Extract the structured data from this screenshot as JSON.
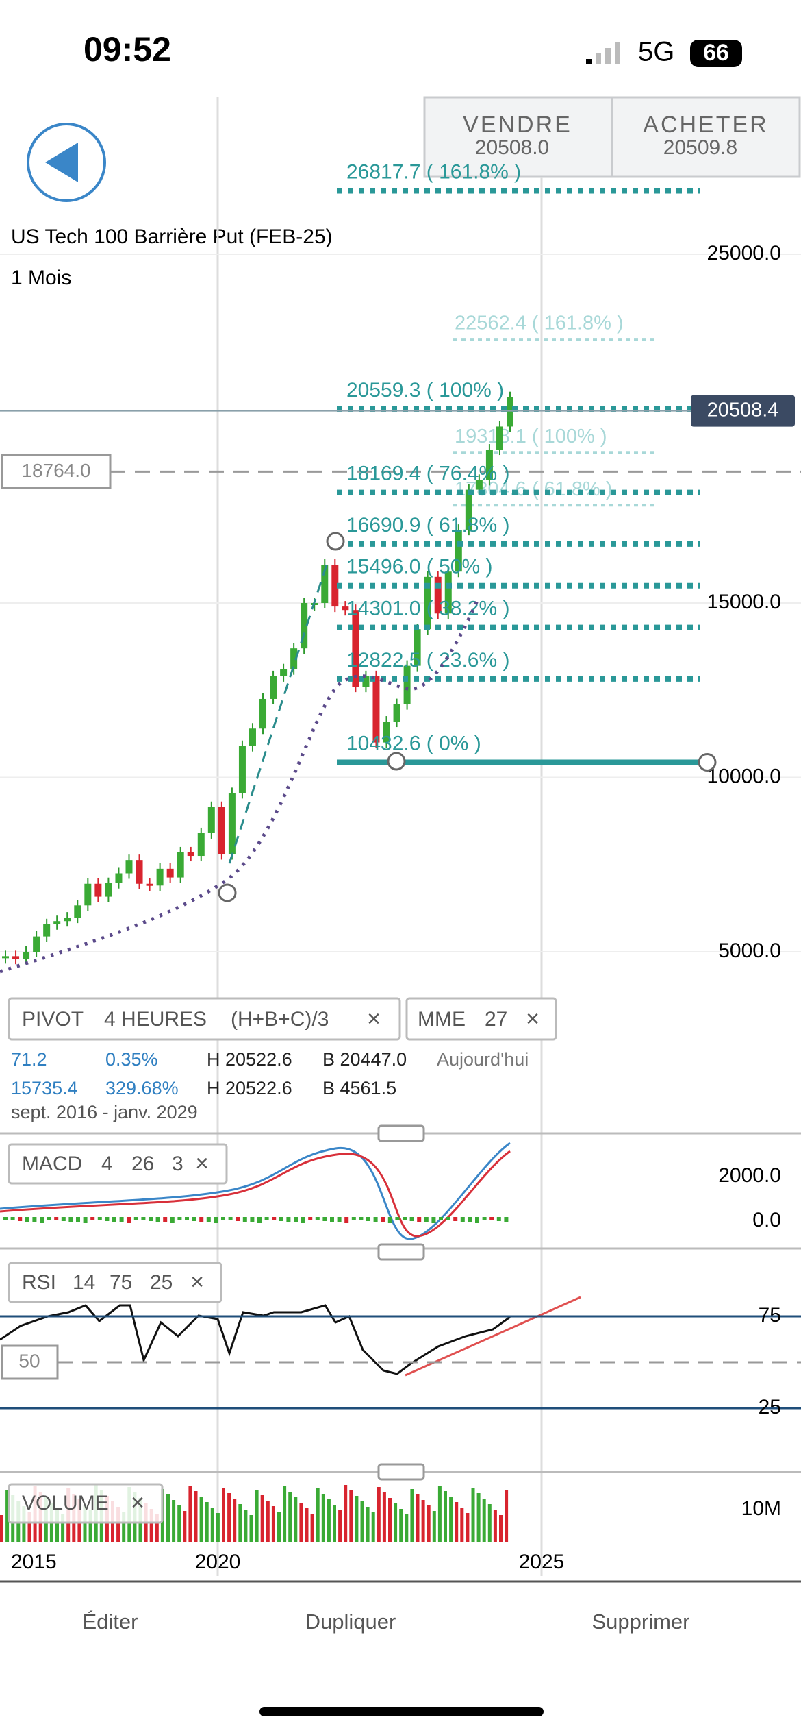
{
  "status_bar": {
    "time": "09:52",
    "network": "5G",
    "battery": "66"
  },
  "trade_buttons": {
    "sell_label": "VENDRE",
    "sell_price": "20508.0",
    "buy_label": "ACHETER",
    "buy_price": "20509.8"
  },
  "chart": {
    "title": "US Tech 100 Barrière Put (FEB-25)",
    "period": "1 Mois",
    "yticks": [
      {
        "value": 25000,
        "label": "25000.0"
      },
      {
        "value": 15000,
        "label": "15000.0"
      },
      {
        "value": 10000,
        "label": "10000.0"
      },
      {
        "value": 5000,
        "label": "5000.0"
      }
    ],
    "xlabels": [
      "2015",
      "2020",
      "2025"
    ],
    "current_price": 20508.4,
    "reference_level": {
      "value": 18764,
      "label": "18764.0"
    },
    "fib_levels": [
      {
        "value": 26817.7,
        "label": "26817.7 ( 161.8% )"
      },
      {
        "value": 20559.3,
        "label": "20559.3 ( 100% )"
      },
      {
        "value": 18169.4,
        "label": "18169.4 ( 76.4% )"
      },
      {
        "value": 16690.9,
        "label": "16690.9 ( 61.8% )"
      },
      {
        "value": 15496.0,
        "label": "15496.0 ( 50% )"
      },
      {
        "value": 14301.0,
        "label": "14301.0 ( 38.2% )"
      },
      {
        "value": 12822.5,
        "label": "12822.5 ( 23.6% )"
      },
      {
        "value": 10432.6,
        "label": "10432.6 ( 0% )"
      }
    ],
    "fib_levels_secondary": [
      {
        "value": 22562.4,
        "label": "22562.4 ( 161.8% )"
      },
      {
        "value": 19318.1,
        "label": "19318.1 ( 100% )"
      },
      {
        "value": 17804.6,
        "label": "17804.6 ( 61.8% )"
      }
    ],
    "closes": [
      4875,
      4800,
      5000,
      5440,
      5790,
      5880,
      5980,
      6330,
      6950,
      6580,
      6970,
      7250,
      7630,
      6950,
      6900,
      7380,
      7130,
      7850,
      7750,
      8400,
      9150,
      7800,
      9550,
      10900,
      11400,
      12250,
      12900,
      13100,
      13700,
      15000,
      15000,
      16100,
      14900,
      14800,
      12600,
      12900,
      11000,
      11600,
      12100,
      13200,
      14250,
      15750,
      14700,
      15900,
      17100,
      18250,
      18530,
      19400,
      20060,
      20900
    ]
  },
  "pivot": {
    "label": "PIVOT",
    "timeframe": "4 HEURES",
    "formula": "(H+B+C)/3",
    "ema_label": "MME",
    "ema_period": "27"
  },
  "stats": {
    "row1": [
      "71.2",
      "0.35%",
      "H 20522.6",
      "B 20447.0",
      "Aujourd'hui"
    ],
    "row2": [
      "15735.4",
      "329.68%",
      "H 20522.6",
      "B 4561.5"
    ],
    "range": "sept. 2016 - janv. 2029"
  },
  "macd": {
    "label": "MACD",
    "params": [
      "4",
      "26",
      "3"
    ],
    "yticks": [
      {
        "value": 2000,
        "label": "2000.0"
      },
      {
        "value": 0,
        "label": "0.0"
      }
    ]
  },
  "rsi": {
    "label": "RSI",
    "params": [
      "14",
      "75",
      "25"
    ],
    "yticks": [
      75,
      25
    ],
    "midline": 50
  },
  "volume": {
    "label": "VOLUME",
    "ytick": "10M"
  },
  "toolbar": [
    "Éditer",
    "Dupliquer",
    "Supprimer"
  ]
}
